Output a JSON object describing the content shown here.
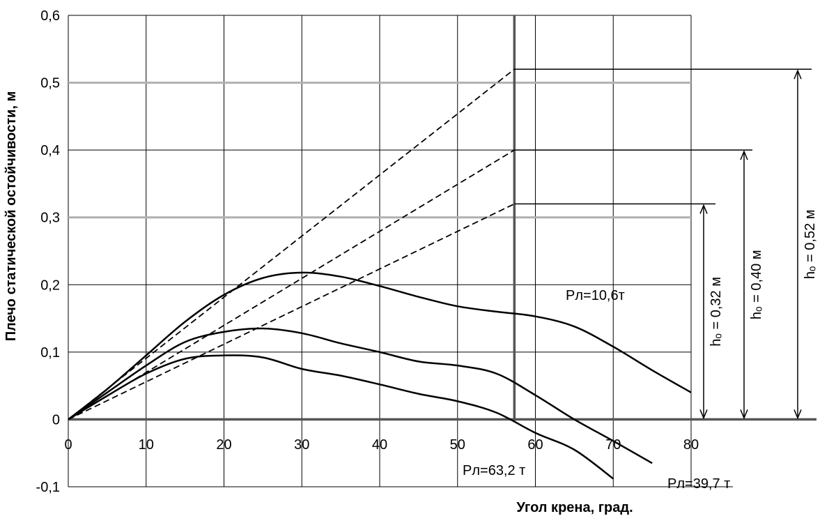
{
  "chart_data": {
    "type": "line",
    "title": "",
    "xlabel": "Угол крена, град.",
    "ylabel": "Плечо статической остойчивости, м",
    "xlim": [
      0,
      80
    ],
    "ylim": [
      -0.1,
      0.6
    ],
    "x_ticks": [
      "0",
      "10",
      "20",
      "30",
      "40",
      "50",
      "60",
      "70",
      "80"
    ],
    "y_ticks": [
      "-0,1",
      "0",
      "0,1",
      "0,2",
      "0,3",
      "0,4",
      "0,5",
      "0,6"
    ],
    "grid": true,
    "series": [
      {
        "name": "Рл=10,6т",
        "x": [
          0,
          5,
          10,
          15,
          20,
          25,
          30,
          35,
          40,
          45,
          50,
          55,
          60,
          65,
          70,
          75,
          80
        ],
        "y": [
          0,
          0.045,
          0.095,
          0.145,
          0.185,
          0.21,
          0.218,
          0.212,
          0.198,
          0.182,
          0.168,
          0.16,
          0.153,
          0.138,
          0.108,
          0.073,
          0.04
        ]
      },
      {
        "name": "Рл=39,7 т",
        "x": [
          0,
          5,
          10,
          15,
          20,
          25,
          30,
          35,
          40,
          45,
          50,
          55,
          60,
          65,
          70,
          75
        ],
        "y": [
          0,
          0.04,
          0.08,
          0.115,
          0.13,
          0.135,
          0.128,
          0.113,
          0.1,
          0.086,
          0.08,
          0.068,
          0.036,
          0.0,
          -0.032,
          -0.065
        ]
      },
      {
        "name": "Рл=63,2 т",
        "x": [
          0,
          5,
          10,
          15,
          20,
          25,
          30,
          35,
          40,
          45,
          50,
          55,
          60,
          65,
          70
        ],
        "y": [
          0,
          0.035,
          0.068,
          0.09,
          0.095,
          0.092,
          0.075,
          0.065,
          0.052,
          0.038,
          0.027,
          0.01,
          -0.02,
          -0.045,
          -0.088
        ]
      }
    ],
    "tangents": [
      {
        "h0": 0.52,
        "label": "hₒ = 0,52 м"
      },
      {
        "h0": 0.4,
        "label": "hₒ = 0,40 м"
      },
      {
        "h0": 0.32,
        "label": "hₒ = 0,32 м"
      }
    ],
    "reference_angle_deg": 57.3,
    "annotations": {
      "curve1": "Рл=10,6т",
      "curve2": "Рл=39,7 т",
      "curve3": "Рл=63,2 т"
    }
  }
}
